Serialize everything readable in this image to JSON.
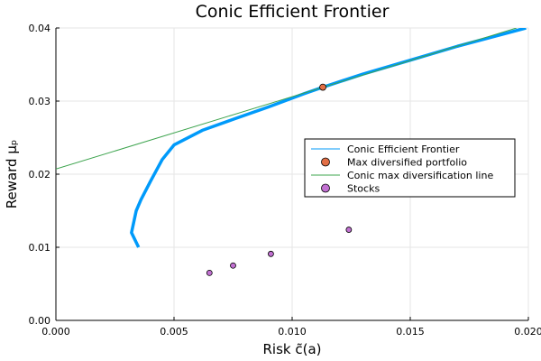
{
  "chart_data": {
    "type": "line",
    "title": "Conic Efficient Frontier",
    "xlabel": "Risk c̃(a)",
    "ylabel": "Reward μₚ",
    "xlim": [
      0.0,
      0.02
    ],
    "ylim": [
      0.0,
      0.04
    ],
    "xticks": [
      0.0,
      0.005,
      0.01,
      0.015,
      0.02
    ],
    "xtick_labels": [
      "0.000",
      "0.005",
      "0.010",
      "0.015",
      "0.020"
    ],
    "yticks": [
      0.0,
      0.01,
      0.02,
      0.03,
      0.04
    ],
    "ytick_labels": [
      "0.00",
      "0.01",
      "0.02",
      "0.03",
      "0.04"
    ],
    "grid": true,
    "legend_position": "right",
    "series": [
      {
        "name": "Conic Efficient Frontier",
        "kind": "line",
        "color": "#009AFA",
        "x": [
          0.0035,
          0.0032,
          0.0033,
          0.0034,
          0.0036,
          0.004,
          0.0045,
          0.005,
          0.0062,
          0.0075,
          0.009,
          0.0105,
          0.0113,
          0.013,
          0.015,
          0.017,
          0.0199
        ],
        "y": [
          0.01,
          0.012,
          0.0135,
          0.015,
          0.0165,
          0.019,
          0.022,
          0.024,
          0.026,
          0.0275,
          0.0292,
          0.031,
          0.0319,
          0.0337,
          0.0356,
          0.0375,
          0.04
        ]
      },
      {
        "name": "Max diversified portfolio",
        "kind": "scatter",
        "color": "#E26F46",
        "x": [
          0.0113
        ],
        "y": [
          0.0319
        ]
      },
      {
        "name": "Conic max diversification line",
        "kind": "line",
        "color": "#3DA44E",
        "x": [
          0.0,
          0.0195
        ],
        "y": [
          0.0207,
          0.04
        ]
      },
      {
        "name": "Stocks",
        "kind": "scatter",
        "color": "#C271D2",
        "x": [
          0.0065,
          0.0075,
          0.0091,
          0.0124
        ],
        "y": [
          0.0065,
          0.0075,
          0.0091,
          0.0124
        ]
      }
    ]
  }
}
